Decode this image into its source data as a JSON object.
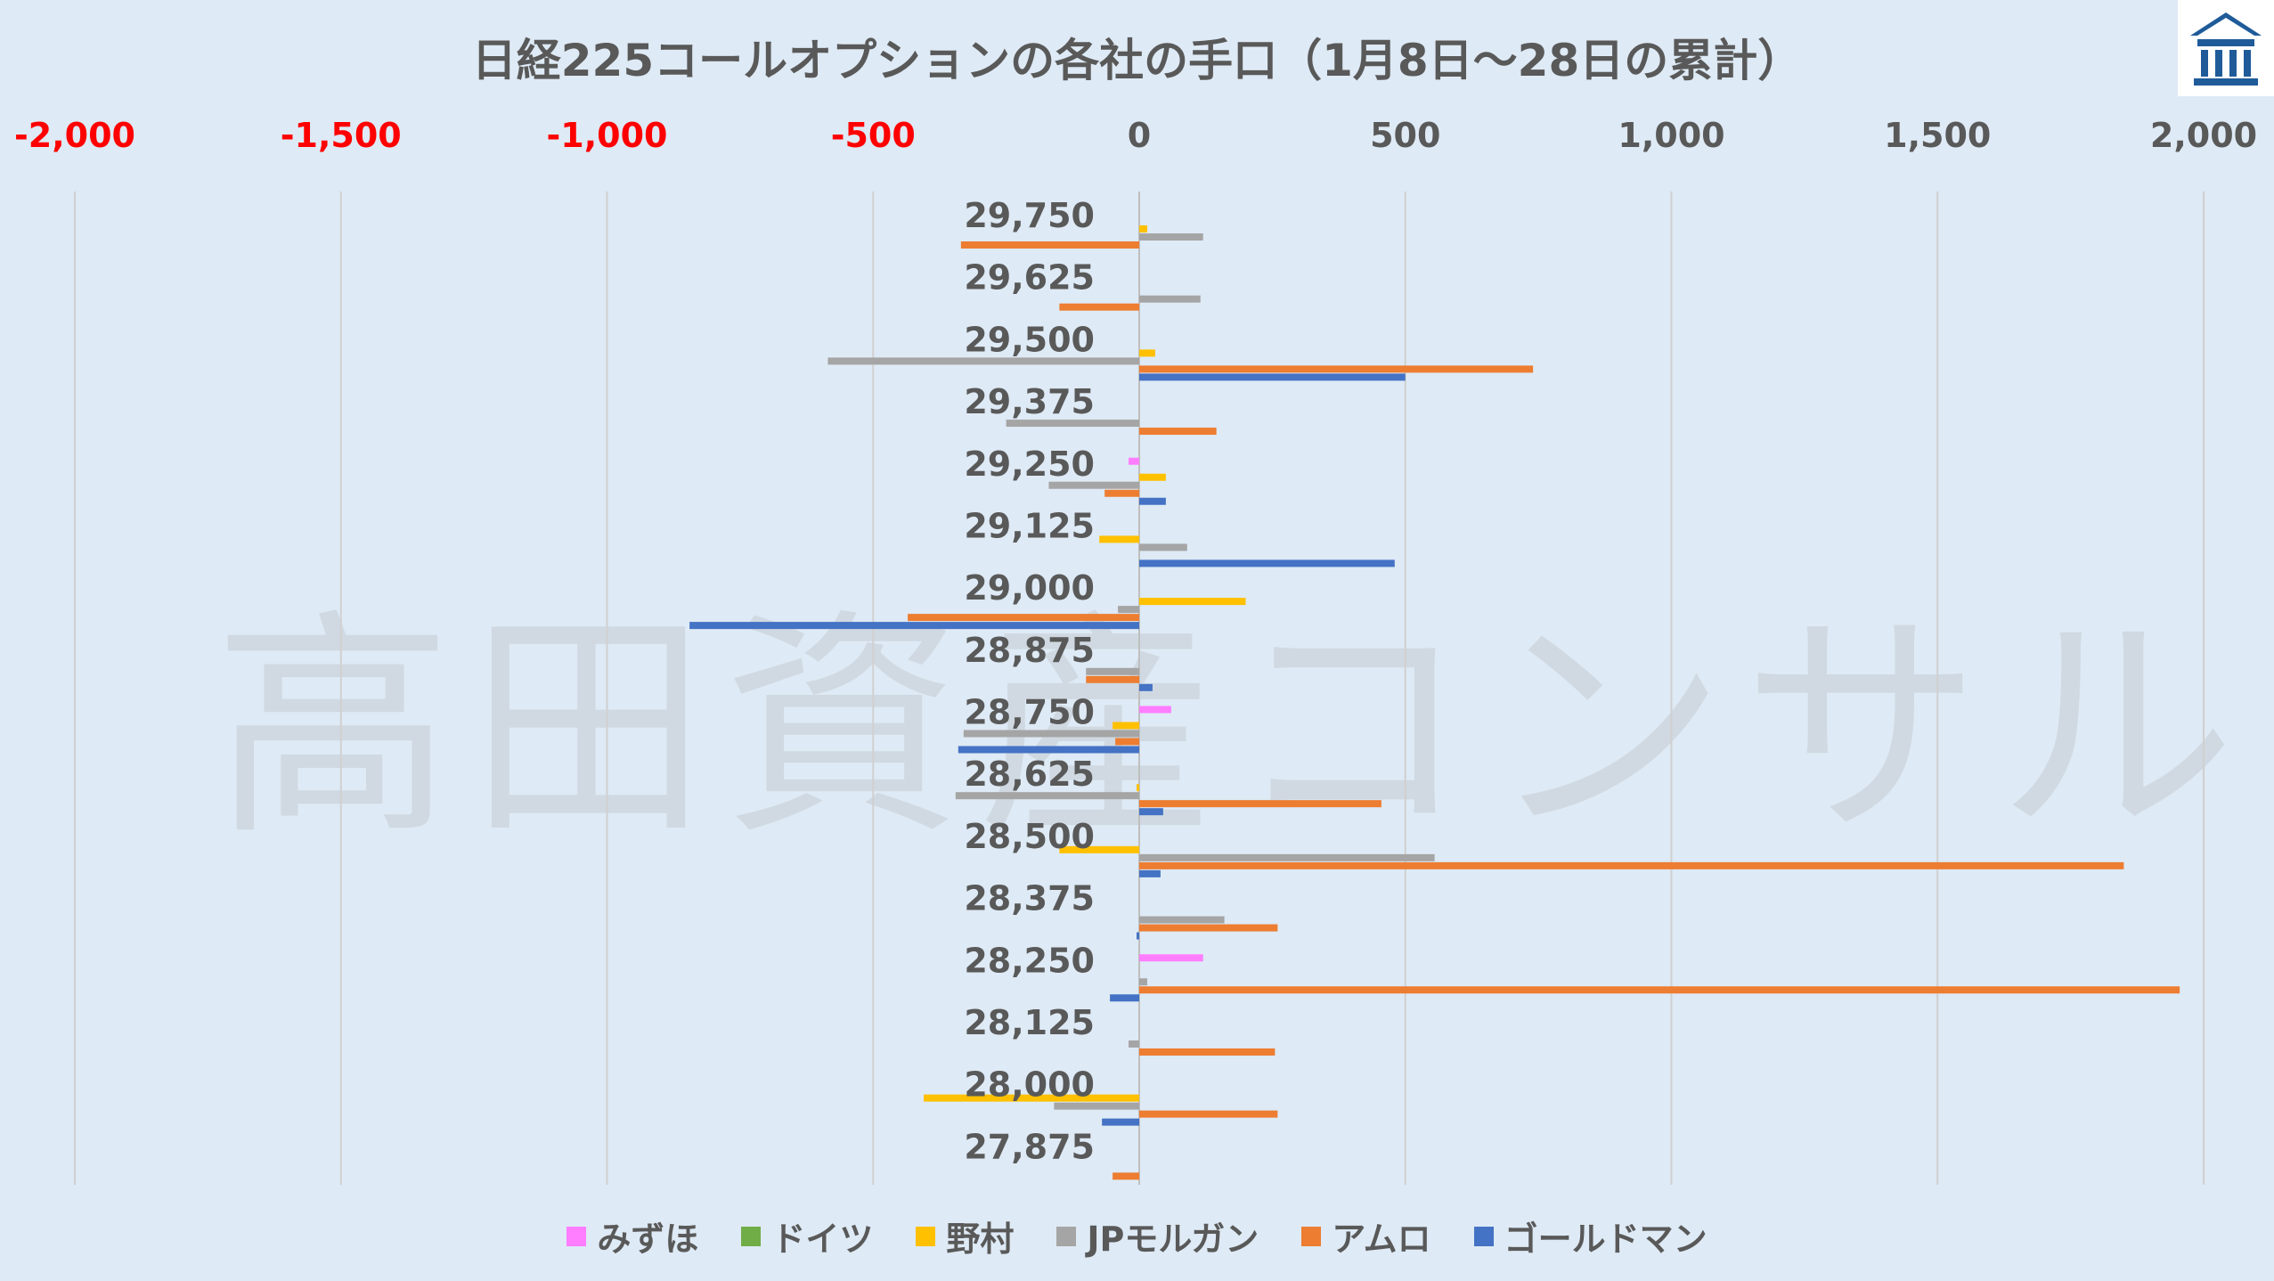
{
  "chart_data": {
    "type": "bar",
    "orientation": "horizontal",
    "title": "日経225コールオプションの各社の手口（1月8日～28日の累計）",
    "xlim": [
      -2000,
      2000
    ],
    "x_ticks": [
      -2000,
      -1500,
      -1000,
      -500,
      0,
      500,
      1000,
      1500,
      2000
    ],
    "x_tick_labels": [
      "-2,000",
      "-1,500",
      "-1,000",
      "-500",
      "0",
      "500",
      "1,000",
      "1,500",
      "2,000"
    ],
    "negative_tick_color": "#ff0000",
    "grid": "vertical",
    "legend_position": "bottom",
    "categories": [
      "29,750",
      "29,625",
      "29,500",
      "29,375",
      "29,250",
      "29,125",
      "29,000",
      "28,875",
      "28,750",
      "28,625",
      "28,500",
      "28,375",
      "28,250",
      "28,125",
      "28,000",
      "27,875"
    ],
    "series": [
      {
        "name": "みずほ",
        "color": "#ff7dff",
        "values": [
          0,
          0,
          0,
          0,
          -20,
          0,
          0,
          0,
          60,
          0,
          0,
          0,
          120,
          0,
          0,
          0
        ]
      },
      {
        "name": "ドイツ",
        "color": "#70ad47",
        "values": [
          0,
          0,
          0,
          0,
          0,
          0,
          0,
          0,
          0,
          0,
          0,
          0,
          0,
          0,
          0,
          0
        ]
      },
      {
        "name": "野村",
        "color": "#ffc000",
        "values": [
          15,
          0,
          30,
          0,
          50,
          -75,
          200,
          0,
          -50,
          -5,
          -150,
          0,
          0,
          0,
          -405,
          0
        ]
      },
      {
        "name": "JPモルガン",
        "color": "#a5a5a5",
        "values": [
          120,
          115,
          -585,
          -250,
          -170,
          90,
          -40,
          -100,
          -330,
          -345,
          555,
          160,
          15,
          -20,
          -160,
          0
        ]
      },
      {
        "name": "アムロ",
        "color": "#ed7d31",
        "values": [
          -335,
          -150,
          740,
          145,
          -65,
          0,
          -435,
          -100,
          -45,
          455,
          1850,
          260,
          1955,
          255,
          260,
          -50
        ]
      },
      {
        "name": "ゴールドマン",
        "color": "#4472c4",
        "values": [
          0,
          0,
          500,
          0,
          50,
          480,
          -845,
          25,
          -340,
          45,
          40,
          -5,
          -55,
          0,
          -70,
          0
        ]
      }
    ]
  },
  "watermark": "高田資産コンサル"
}
